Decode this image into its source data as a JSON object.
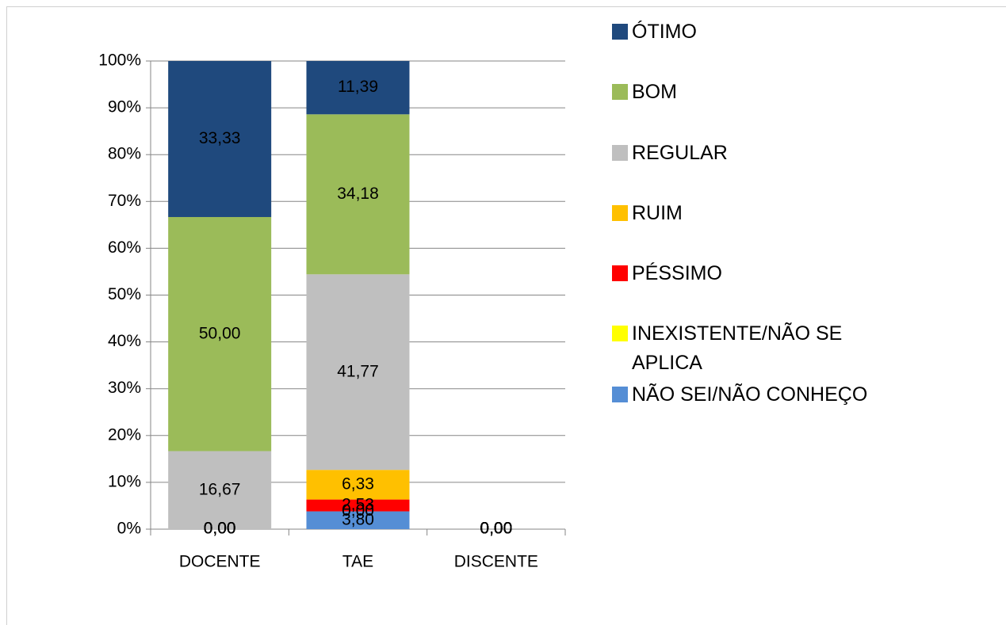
{
  "chart_data": {
    "type": "stacked_bar_100",
    "categories": [
      "DOCENTE",
      "TAE",
      "DISCENTE"
    ],
    "series": [
      {
        "name": "NÃO SEI/NÃO CONHEÇO",
        "color": "#558ed5",
        "values": [
          0,
          3.8,
          0
        ],
        "value_labels": [
          "0,00",
          "3,80",
          "0,00"
        ]
      },
      {
        "name": "INEXISTENTE/NÃO SE APLICA",
        "color": "#ffff00",
        "values": [
          0,
          0,
          0
        ],
        "value_labels": [
          "0,00",
          "0,00",
          "0,00"
        ]
      },
      {
        "name": "PÉSSIMO",
        "color": "#ff0000",
        "values": [
          0,
          2.53,
          0
        ],
        "value_labels": [
          "0,00",
          "2,53",
          "0,00"
        ]
      },
      {
        "name": "RUIM",
        "color": "#ffc000",
        "values": [
          0,
          6.33,
          0
        ],
        "value_labels": [
          "0,00",
          "6,33",
          "0,00"
        ]
      },
      {
        "name": "REGULAR",
        "color": "#bfbfbf",
        "values": [
          16.67,
          41.77,
          0
        ],
        "value_labels": [
          "16,67",
          "41,77",
          "0,00"
        ]
      },
      {
        "name": "BOM",
        "color": "#9bbb59",
        "values": [
          50,
          34.18,
          0
        ],
        "value_labels": [
          "50,00",
          "34,18",
          "0,00"
        ]
      },
      {
        "name": "ÓTIMO",
        "color": "#1f497d",
        "values": [
          33.33,
          11.39,
          0
        ],
        "value_labels": [
          "33,33",
          "11,39",
          "0,00"
        ]
      }
    ],
    "ylim": [
      0,
      100
    ],
    "yticks": [
      {
        "value": 0,
        "label": "0%"
      },
      {
        "value": 10,
        "label": "10%"
      },
      {
        "value": 20,
        "label": "20%"
      },
      {
        "value": 30,
        "label": "30%"
      },
      {
        "value": 40,
        "label": "40%"
      },
      {
        "value": 50,
        "label": "50%"
      },
      {
        "value": 60,
        "label": "60%"
      },
      {
        "value": 70,
        "label": "70%"
      },
      {
        "value": 80,
        "label": "80%"
      },
      {
        "value": 90,
        "label": "90%"
      },
      {
        "value": 100,
        "label": "100%"
      }
    ],
    "grid": true,
    "legend": "right"
  }
}
